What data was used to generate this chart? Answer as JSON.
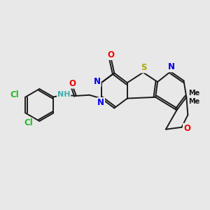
{
  "background_color": "#e8e8e8",
  "bond_color": "#1a1a1a",
  "atom_colors": {
    "N": "#0000ee",
    "O": "#ee0000",
    "S": "#aaaa00",
    "Cl": "#22bb22",
    "NH": "#44aaaa",
    "C": "#1a1a1a"
  },
  "lw": 1.4,
  "fs": 8.5
}
